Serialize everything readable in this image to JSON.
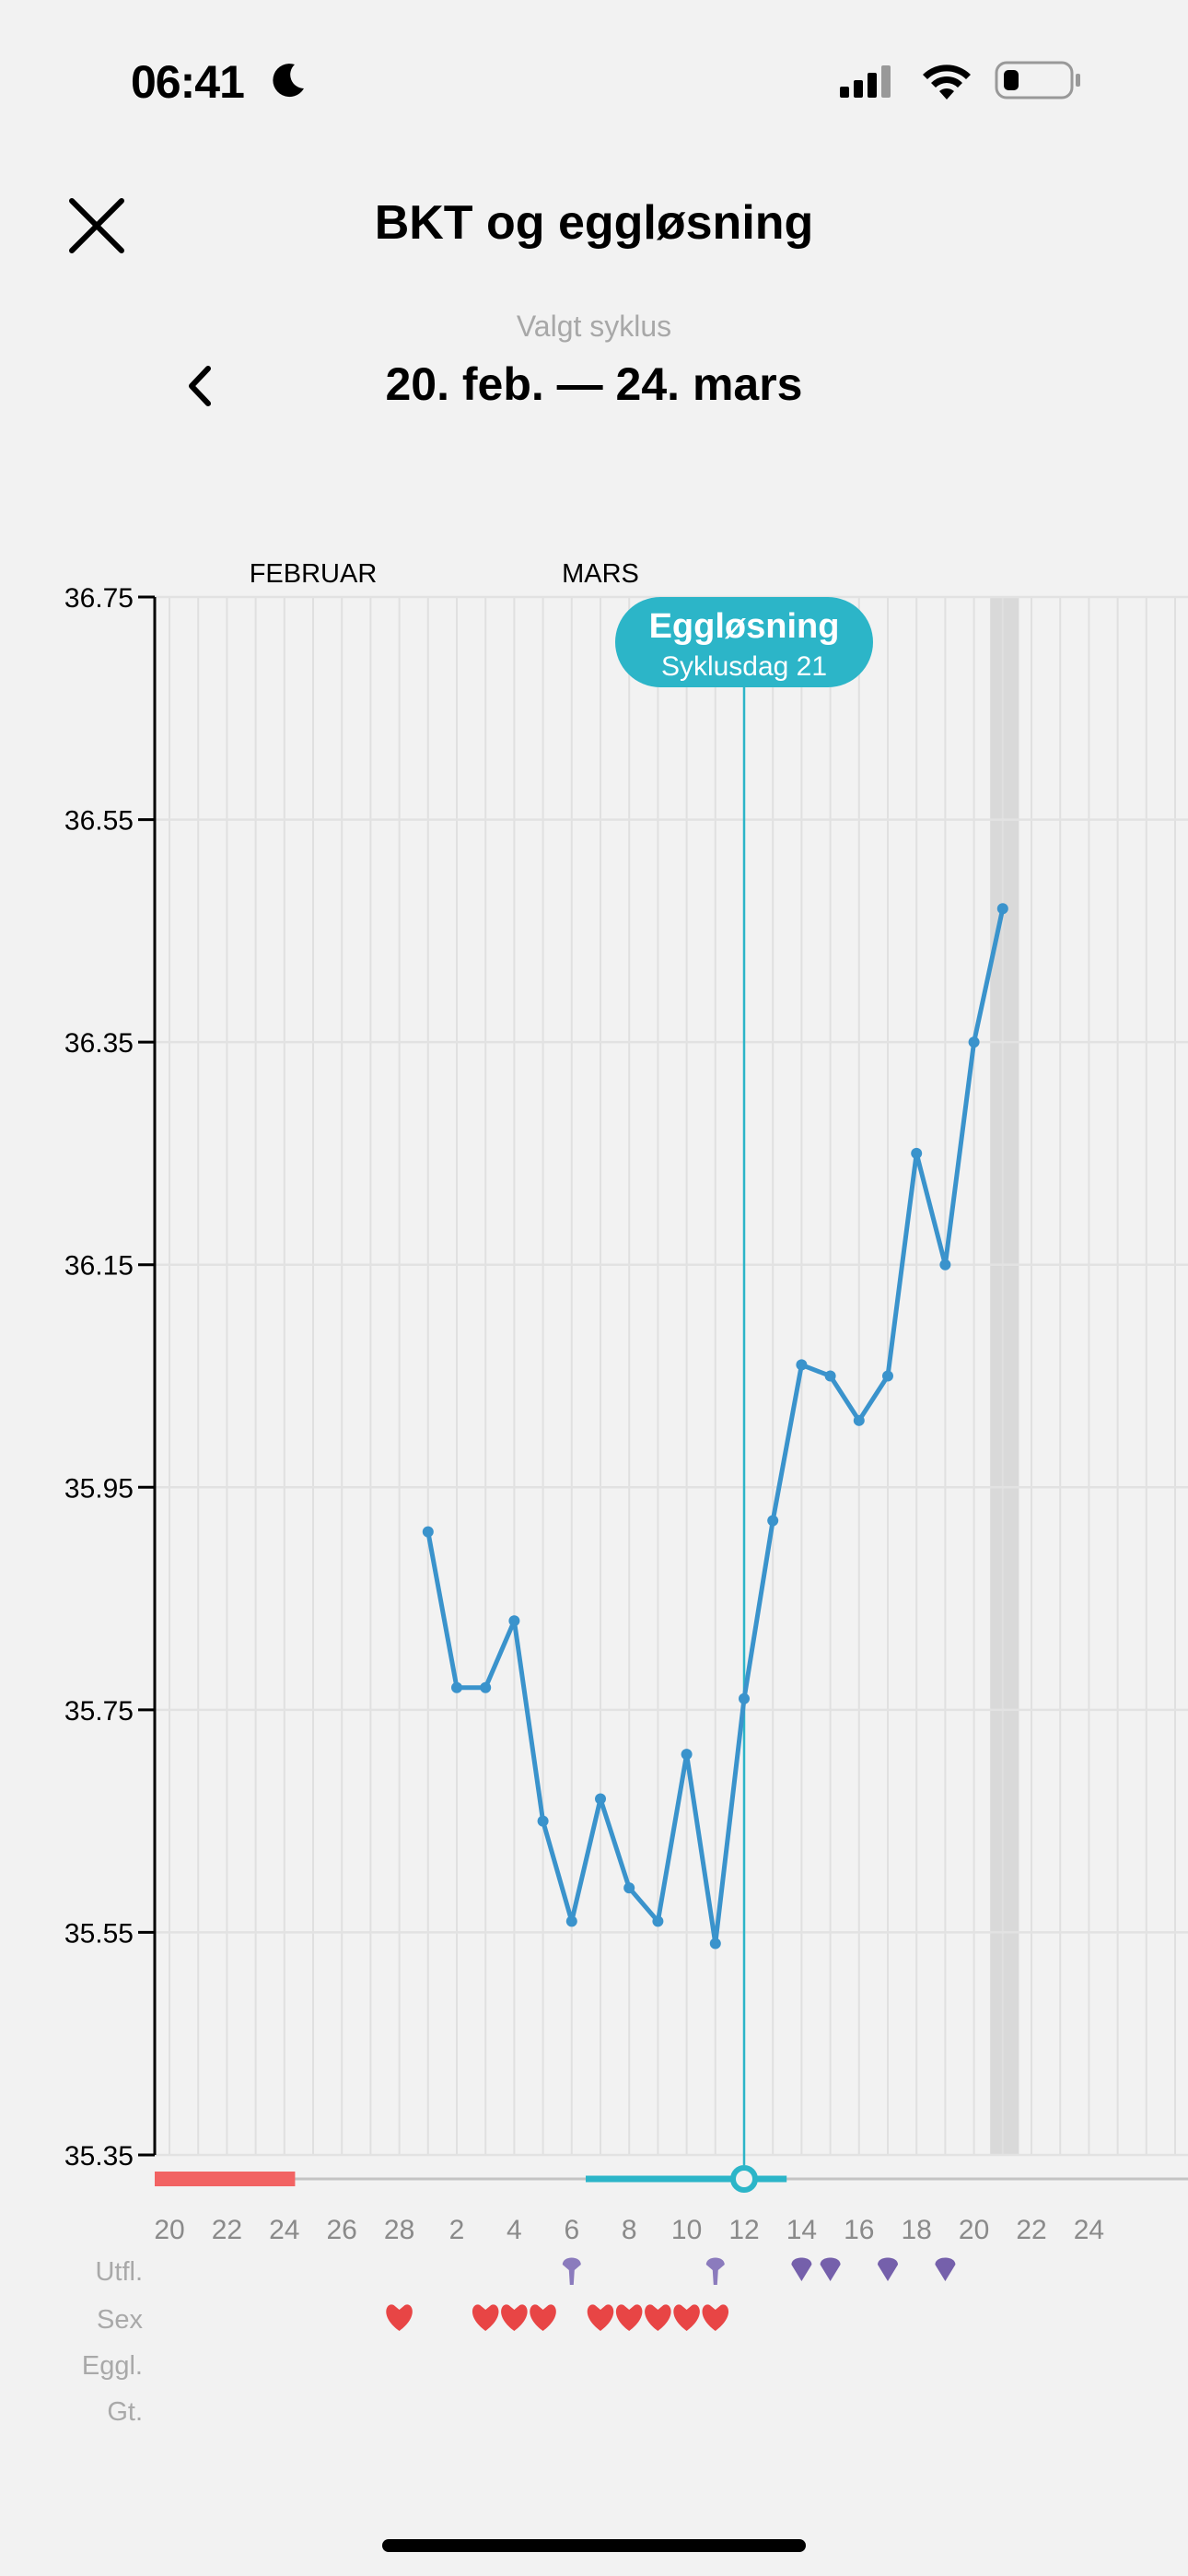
{
  "status_bar": {
    "time": "06:41",
    "focus_icon": "moon-icon",
    "signal_icon": "cellular-signal-icon",
    "wifi_icon": "wifi-icon",
    "battery_icon": "battery-low-icon"
  },
  "header": {
    "title": "BKT og eggløsning",
    "close_icon": "close-icon"
  },
  "cycle": {
    "label": "Valgt syklus",
    "range": "20. feb. — 24. mars",
    "back_icon": "chevron-left-icon"
  },
  "colors": {
    "line": "#3a93cc",
    "ovulation": "#2cb5c8",
    "period": "#f26363",
    "sex": "#e84545",
    "discharge_light": "#8b7bbd",
    "discharge": "#7560ab",
    "today_band": "#d9d9d9"
  },
  "chart_data": {
    "type": "line",
    "ylim": [
      35.35,
      36.75
    ],
    "y_ticks": [
      "36.75",
      "36.55",
      "36.35",
      "36.15",
      "35.95",
      "35.75",
      "35.55",
      "35.35"
    ],
    "month_labels": [
      {
        "label": "FEBRUAR",
        "month": "feb",
        "day": 25
      },
      {
        "label": "MARS",
        "month": "mars",
        "day": 7
      }
    ],
    "x_start": {
      "month": "feb",
      "day": 20
    },
    "x_ticks": [
      {
        "month": "feb",
        "day": 20
      },
      {
        "month": "feb",
        "day": 22
      },
      {
        "month": "feb",
        "day": 24
      },
      {
        "month": "feb",
        "day": 26
      },
      {
        "month": "feb",
        "day": 28
      },
      {
        "month": "mars",
        "day": 2
      },
      {
        "month": "mars",
        "day": 4
      },
      {
        "month": "mars",
        "day": 6
      },
      {
        "month": "mars",
        "day": 8
      },
      {
        "month": "mars",
        "day": 10
      },
      {
        "month": "mars",
        "day": 12
      },
      {
        "month": "mars",
        "day": 14
      },
      {
        "month": "mars",
        "day": 16
      },
      {
        "month": "mars",
        "day": 18
      },
      {
        "month": "mars",
        "day": 20
      },
      {
        "month": "mars",
        "day": 22
      },
      {
        "month": "mars",
        "day": 24
      }
    ],
    "series": [
      {
        "points": [
          {
            "month": "mars",
            "day": 1,
            "value": 35.91
          },
          {
            "month": "mars",
            "day": 2,
            "value": 35.77
          },
          {
            "month": "mars",
            "day": 3,
            "value": 35.77
          },
          {
            "month": "mars",
            "day": 4,
            "value": 35.83
          },
          {
            "month": "mars",
            "day": 5,
            "value": 35.65
          },
          {
            "month": "mars",
            "day": 6,
            "value": 35.56
          },
          {
            "month": "mars",
            "day": 7,
            "value": 35.67
          },
          {
            "month": "mars",
            "day": 8,
            "value": 35.59
          },
          {
            "month": "mars",
            "day": 9,
            "value": 35.56
          },
          {
            "month": "mars",
            "day": 10,
            "value": 35.71
          },
          {
            "month": "mars",
            "day": 11,
            "value": 35.54
          },
          {
            "month": "mars",
            "day": 12,
            "value": 35.76
          },
          {
            "month": "mars",
            "day": 13,
            "value": 35.92
          },
          {
            "month": "mars",
            "day": 14,
            "value": 36.06
          },
          {
            "month": "mars",
            "day": 15,
            "value": 36.05
          },
          {
            "month": "mars",
            "day": 16,
            "value": 36.01
          },
          {
            "month": "mars",
            "day": 17,
            "value": 36.05
          },
          {
            "month": "mars",
            "day": 18,
            "value": 36.25
          },
          {
            "month": "mars",
            "day": 19,
            "value": 36.15
          },
          {
            "month": "mars",
            "day": 20,
            "value": 36.35
          },
          {
            "month": "mars",
            "day": 21,
            "value": 36.47
          }
        ]
      }
    ],
    "ovulation": {
      "month": "mars",
      "day": 12,
      "title": "Eggløsning",
      "subtitle": "Syklusdag 21"
    },
    "today_band": {
      "month": "mars",
      "day": 21
    },
    "period": {
      "from": {
        "month": "feb",
        "day": 20
      },
      "to": {
        "month": "feb",
        "day": 25
      }
    },
    "fertile_window": {
      "from": {
        "month": "mars",
        "day": 7
      },
      "to": {
        "month": "mars",
        "day": 13
      }
    },
    "grid": true
  },
  "rows": [
    {
      "label": "Utfl.",
      "icon": "discharge-drop-icon",
      "entries": [
        {
          "month": "mars",
          "day": 6,
          "kind": "light"
        },
        {
          "month": "mars",
          "day": 11,
          "kind": "light"
        },
        {
          "month": "mars",
          "day": 14,
          "kind": "normal"
        },
        {
          "month": "mars",
          "day": 15,
          "kind": "normal"
        },
        {
          "month": "mars",
          "day": 17,
          "kind": "normal"
        },
        {
          "month": "mars",
          "day": 19,
          "kind": "normal"
        }
      ]
    },
    {
      "label": "Sex",
      "icon": "heart-icon",
      "entries": [
        {
          "month": "feb",
          "day": 28
        },
        {
          "month": "mars",
          "day": 3
        },
        {
          "month": "mars",
          "day": 4
        },
        {
          "month": "mars",
          "day": 5
        },
        {
          "month": "mars",
          "day": 7
        },
        {
          "month": "mars",
          "day": 8
        },
        {
          "month": "mars",
          "day": 9
        },
        {
          "month": "mars",
          "day": 10
        },
        {
          "month": "mars",
          "day": 11
        }
      ]
    },
    {
      "label": "Eggl.",
      "entries": []
    },
    {
      "label": "Gt.",
      "entries": []
    }
  ]
}
